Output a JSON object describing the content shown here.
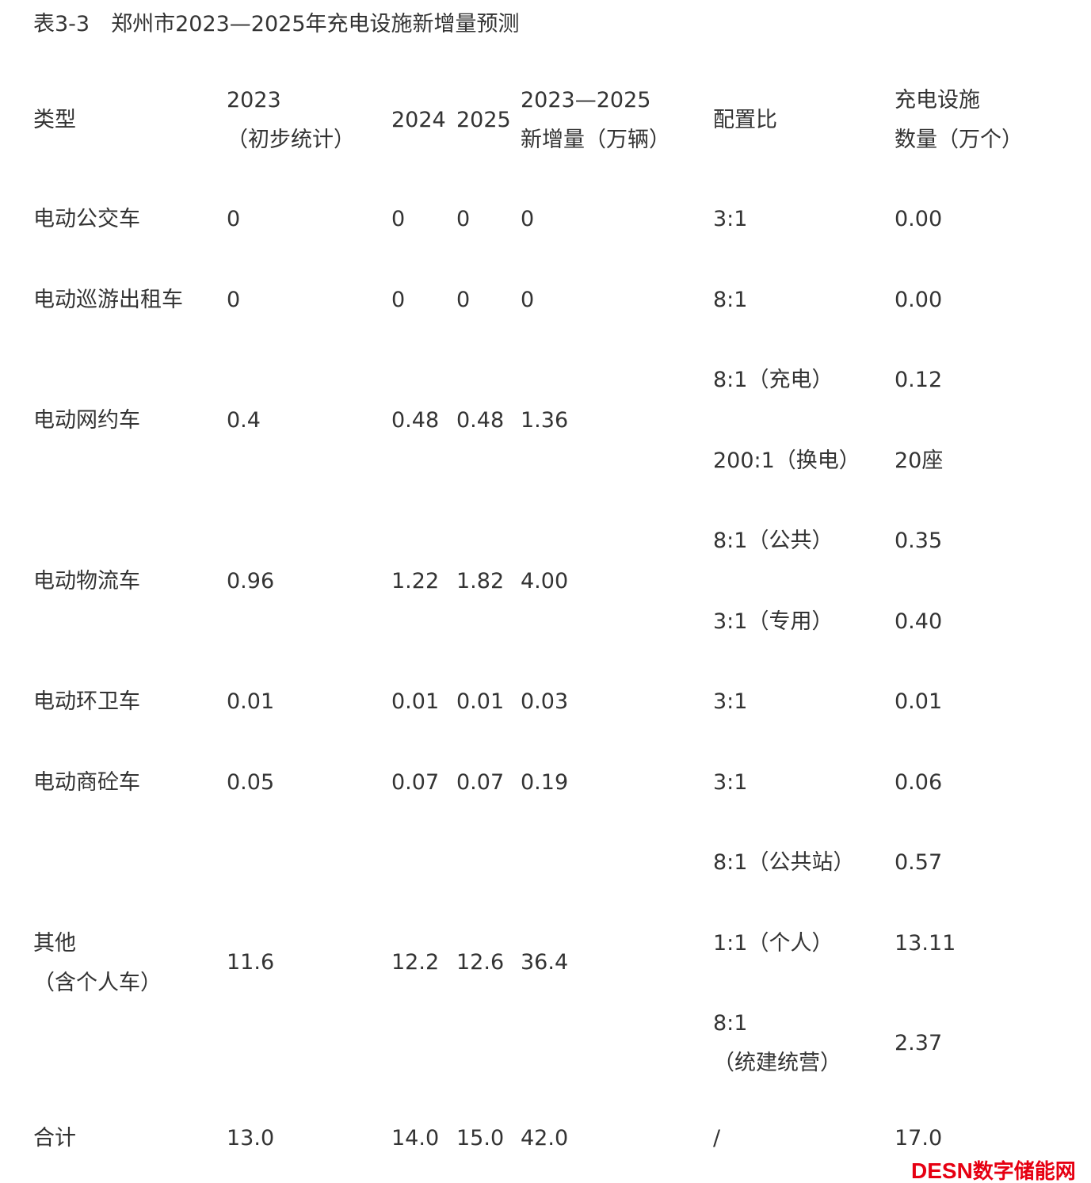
{
  "title": "表3-3　郑州市2023—2025年充电设施新增量预测",
  "headers": {
    "type": "类型",
    "y2023_line1": "2023",
    "y2023_line2": "（初步统计）",
    "y2024": "2024",
    "y2025": "2025",
    "increase_line1": "2023—2025",
    "increase_line2": "新增量（万辆）",
    "ratio": "配置比",
    "facilities_line1": "充电设施",
    "facilities_line2": "数量（万个）"
  },
  "rows": [
    {
      "type": "电动公交车",
      "y2023": "0",
      "y2024": "0",
      "y2025": "0",
      "increase": "0",
      "ratios": [
        {
          "ratio": "3:1",
          "count": "0.00"
        }
      ]
    },
    {
      "type": "电动巡游出租车",
      "y2023": "0",
      "y2024": "0",
      "y2025": "0",
      "increase": "0",
      "ratios": [
        {
          "ratio": "8:1",
          "count": "0.00"
        }
      ]
    },
    {
      "type": "电动网约车",
      "y2023": "0.4",
      "y2024": "0.48",
      "y2025": "0.48",
      "increase": "1.36",
      "ratios": [
        {
          "ratio": "8:1（充电）",
          "count": "0.12"
        },
        {
          "ratio": "200:1（换电）",
          "count": "20座"
        }
      ]
    },
    {
      "type": "电动物流车",
      "y2023": "0.96",
      "y2024": "1.22",
      "y2025": "1.82",
      "increase": "4.00",
      "ratios": [
        {
          "ratio": "8:1（公共）",
          "count": "0.35"
        },
        {
          "ratio": "3:1（专用）",
          "count": "0.40"
        }
      ]
    },
    {
      "type": "电动环卫车",
      "y2023": "0.01",
      "y2024": "0.01",
      "y2025": "0.01",
      "increase": "0.03",
      "ratios": [
        {
          "ratio": "3:1",
          "count": "0.01"
        }
      ]
    },
    {
      "type": "电动商砼车",
      "y2023": "0.05",
      "y2024": "0.07",
      "y2025": "0.07",
      "increase": "0.19",
      "ratios": [
        {
          "ratio": "3:1",
          "count": "0.06"
        }
      ]
    },
    {
      "type_line1": "其他",
      "type_line2": "（含个人车）",
      "y2023": "11.6",
      "y2024": "12.2",
      "y2025": "12.6",
      "increase": "36.4",
      "ratios": [
        {
          "ratio": "8:1（公共站）",
          "count": "0.57"
        },
        {
          "ratio": "1:1（个人）",
          "count": "13.11"
        },
        {
          "ratio_line1": "8:1",
          "ratio_line2": "（统建统营）",
          "count": "2.37"
        }
      ]
    },
    {
      "type": "合计",
      "y2023": "13.0",
      "y2024": "14.0",
      "y2025": "15.0",
      "increase": "42.0",
      "ratios": [
        {
          "ratio": "/",
          "count": "17.0"
        }
      ]
    }
  ],
  "watermark": {
    "latin": "DESN",
    "cn": "数字储能网",
    "color": "#e60012"
  }
}
